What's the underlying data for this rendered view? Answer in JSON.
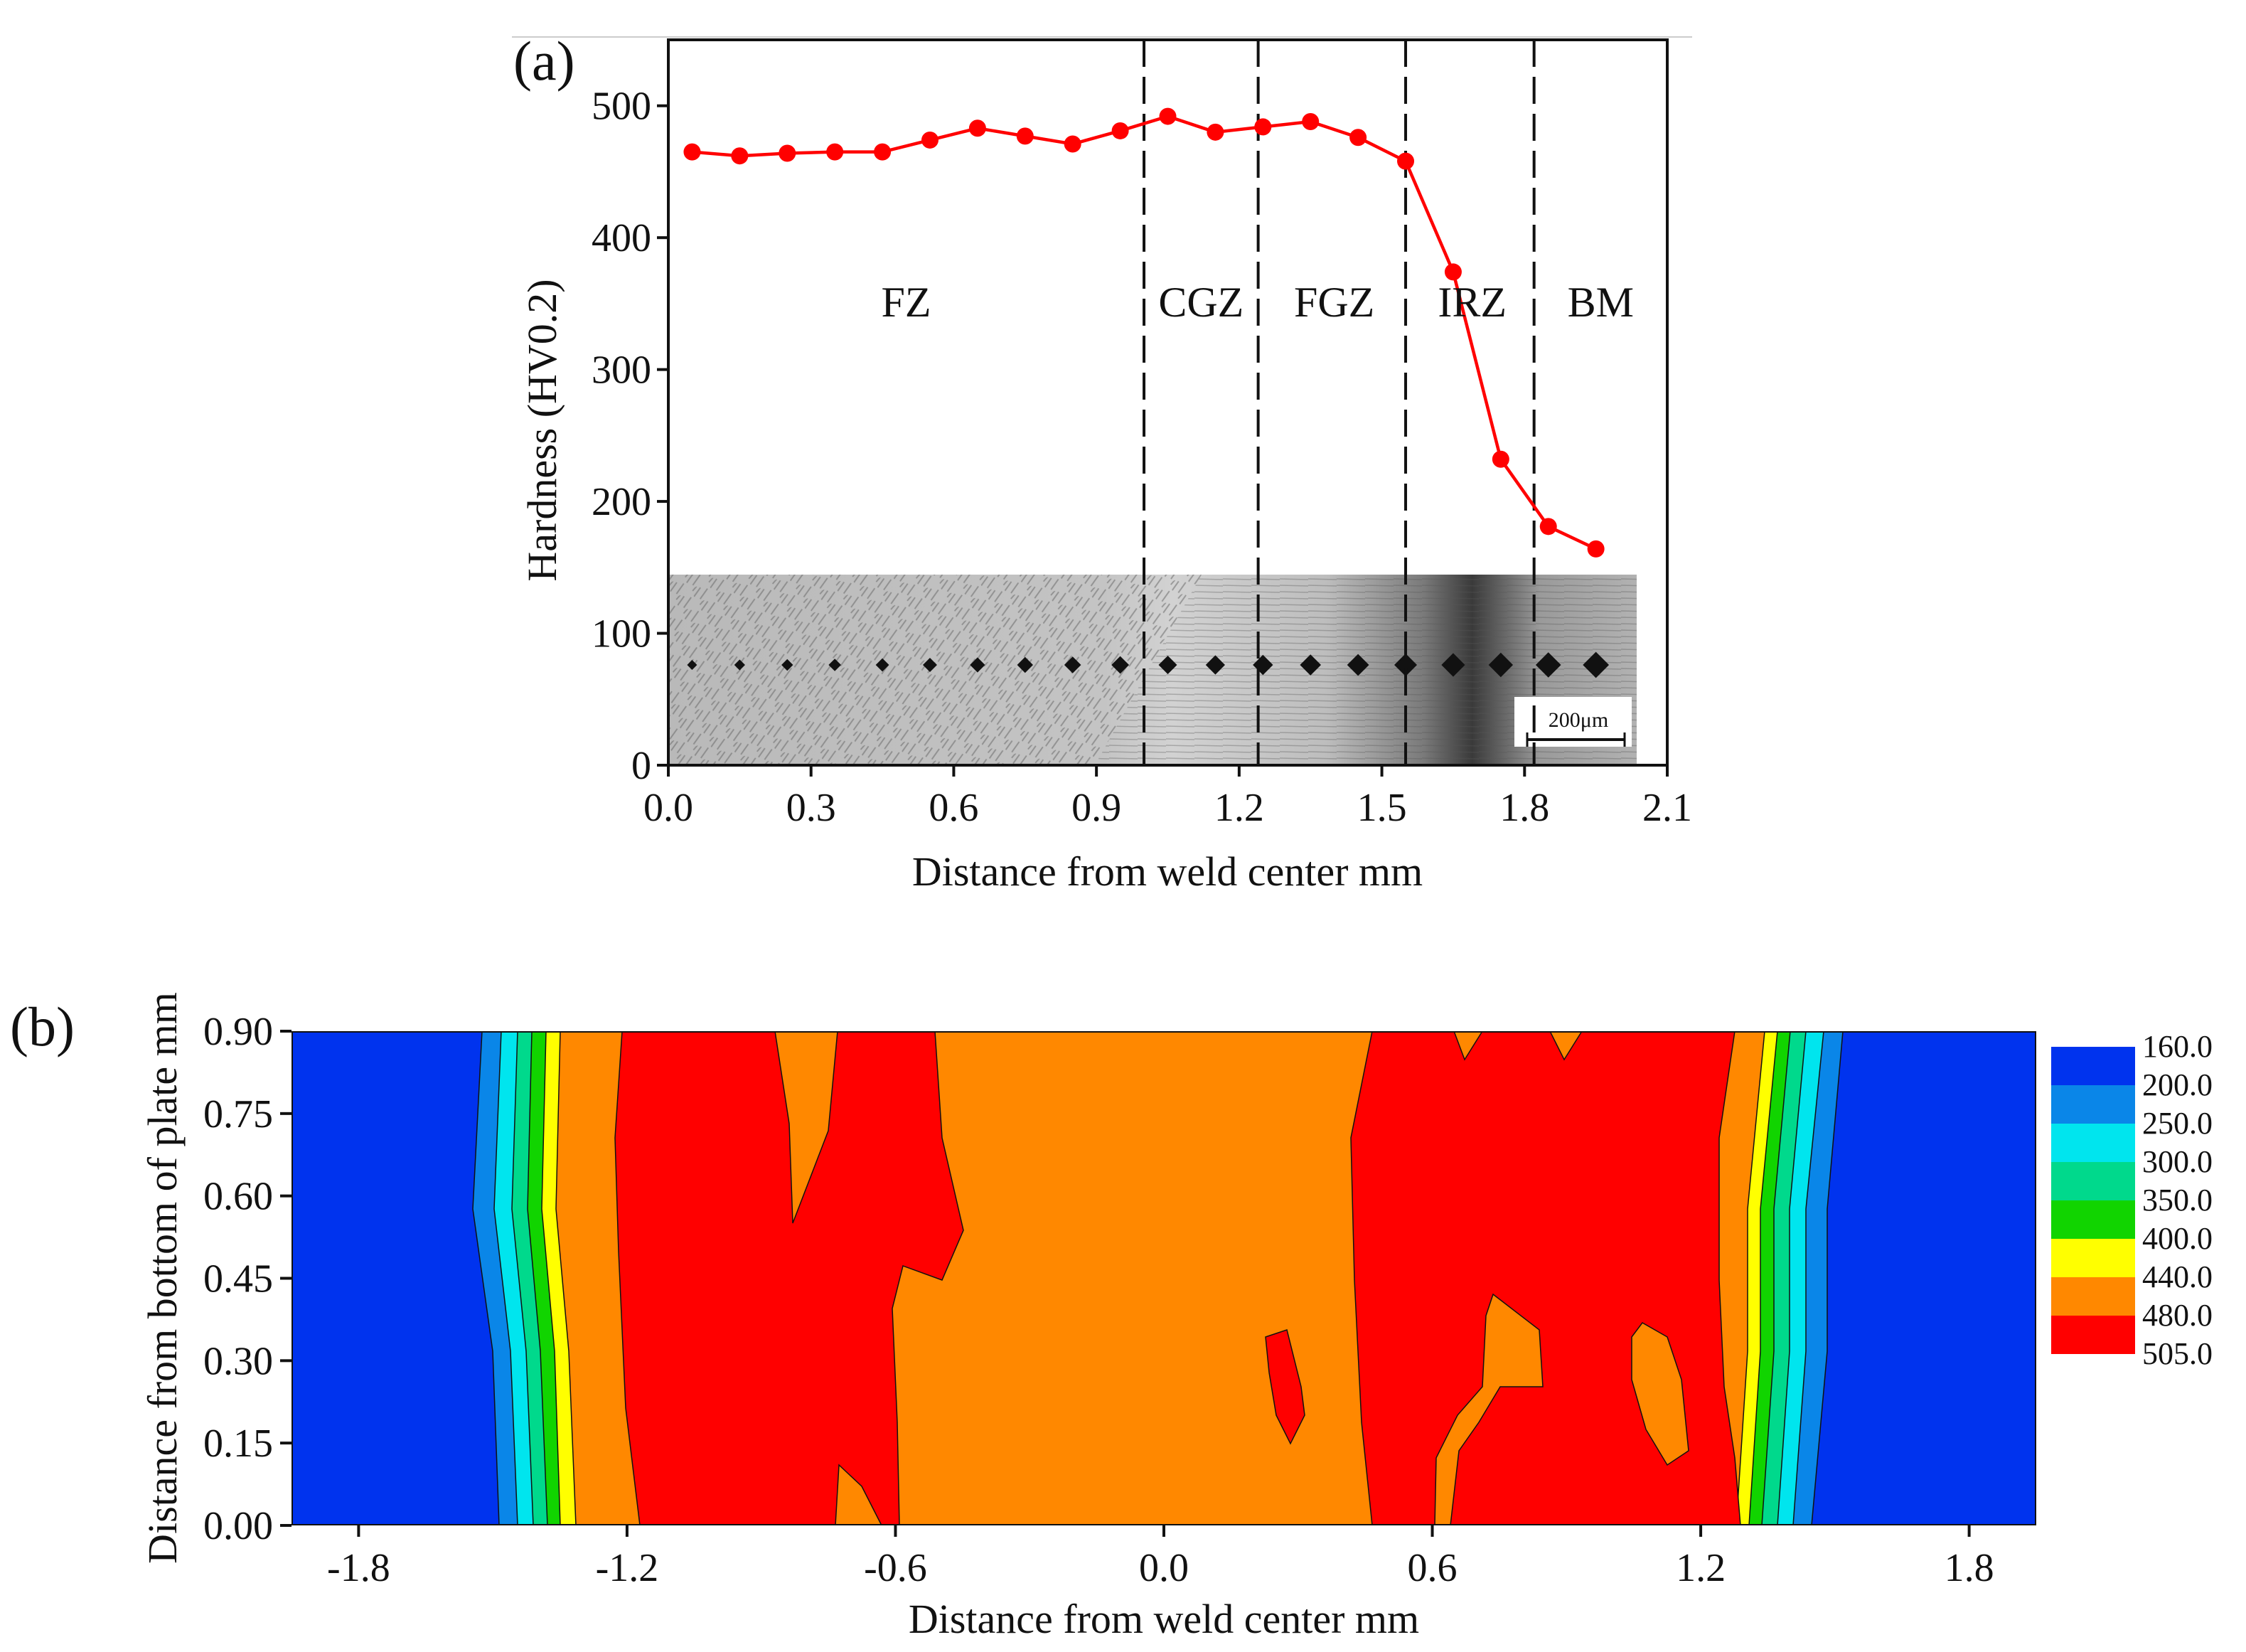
{
  "figure": {
    "panel_a_label": "(a)",
    "panel_b_label": "(b)"
  },
  "chart_data": [
    {
      "type": "line",
      "panel": "(a)",
      "title": "",
      "xlabel": "Distance from weld center  mm",
      "ylabel": "Hardness (HV0.2)",
      "xlim": [
        0.0,
        2.1
      ],
      "ylim": [
        0,
        550
      ],
      "xticks": [
        "0.0",
        "0.3",
        "0.6",
        "0.9",
        "1.2",
        "1.5",
        "1.8",
        "2.1"
      ],
      "yticks": [
        "0",
        "100",
        "200",
        "300",
        "400",
        "500"
      ],
      "series": [
        {
          "name": "Hardness",
          "color": "#ff0000",
          "x": [
            0.05,
            0.15,
            0.25,
            0.35,
            0.45,
            0.55,
            0.65,
            0.75,
            0.85,
            0.95,
            1.05,
            1.15,
            1.25,
            1.35,
            1.45,
            1.55,
            1.65,
            1.75,
            1.85,
            1.95
          ],
          "y": [
            465,
            462,
            464,
            465,
            465,
            474,
            483,
            477,
            471,
            481,
            492,
            480,
            484,
            488,
            476,
            458,
            374,
            232,
            181,
            164
          ]
        }
      ],
      "zone_boundaries": [
        1.0,
        1.24,
        1.55,
        1.82
      ],
      "zones": [
        {
          "label": "FZ",
          "x": 0.5
        },
        {
          "label": "CGZ",
          "x": 1.12
        },
        {
          "label": "FGZ",
          "x": 1.4
        },
        {
          "label": "IRZ",
          "x": 1.69
        },
        {
          "label": "BM",
          "x": 1.96
        }
      ],
      "inset": {
        "description_hidden": true,
        "scale_bar": "200μm"
      }
    },
    {
      "type": "heatmap",
      "subtype": "filled-contour",
      "panel": "(b)",
      "xlabel": "Distance from weld center  mm",
      "ylabel": "Distance from bottom of plate  mm",
      "xlim": [
        -1.95,
        1.95
      ],
      "ylim": [
        0.0,
        0.9
      ],
      "xticks": [
        "-1.8",
        "-1.2",
        "-0.6",
        "0.0",
        "0.6",
        "1.2",
        "1.8"
      ],
      "yticks": [
        "0.00",
        "0.15",
        "0.30",
        "0.45",
        "0.60",
        "0.75",
        "0.90"
      ],
      "colorbar": {
        "levels": [
          "160.0",
          "200.0",
          "250.0",
          "300.0",
          "350.0",
          "400.0",
          "440.0",
          "480.0",
          "505.0"
        ],
        "colors": [
          "#0033ee",
          "#0a86e8",
          "#00e5ee",
          "#00d98c",
          "#11d400",
          "#ffff00",
          "#ff8800",
          "#ff0000"
        ]
      }
    }
  ]
}
